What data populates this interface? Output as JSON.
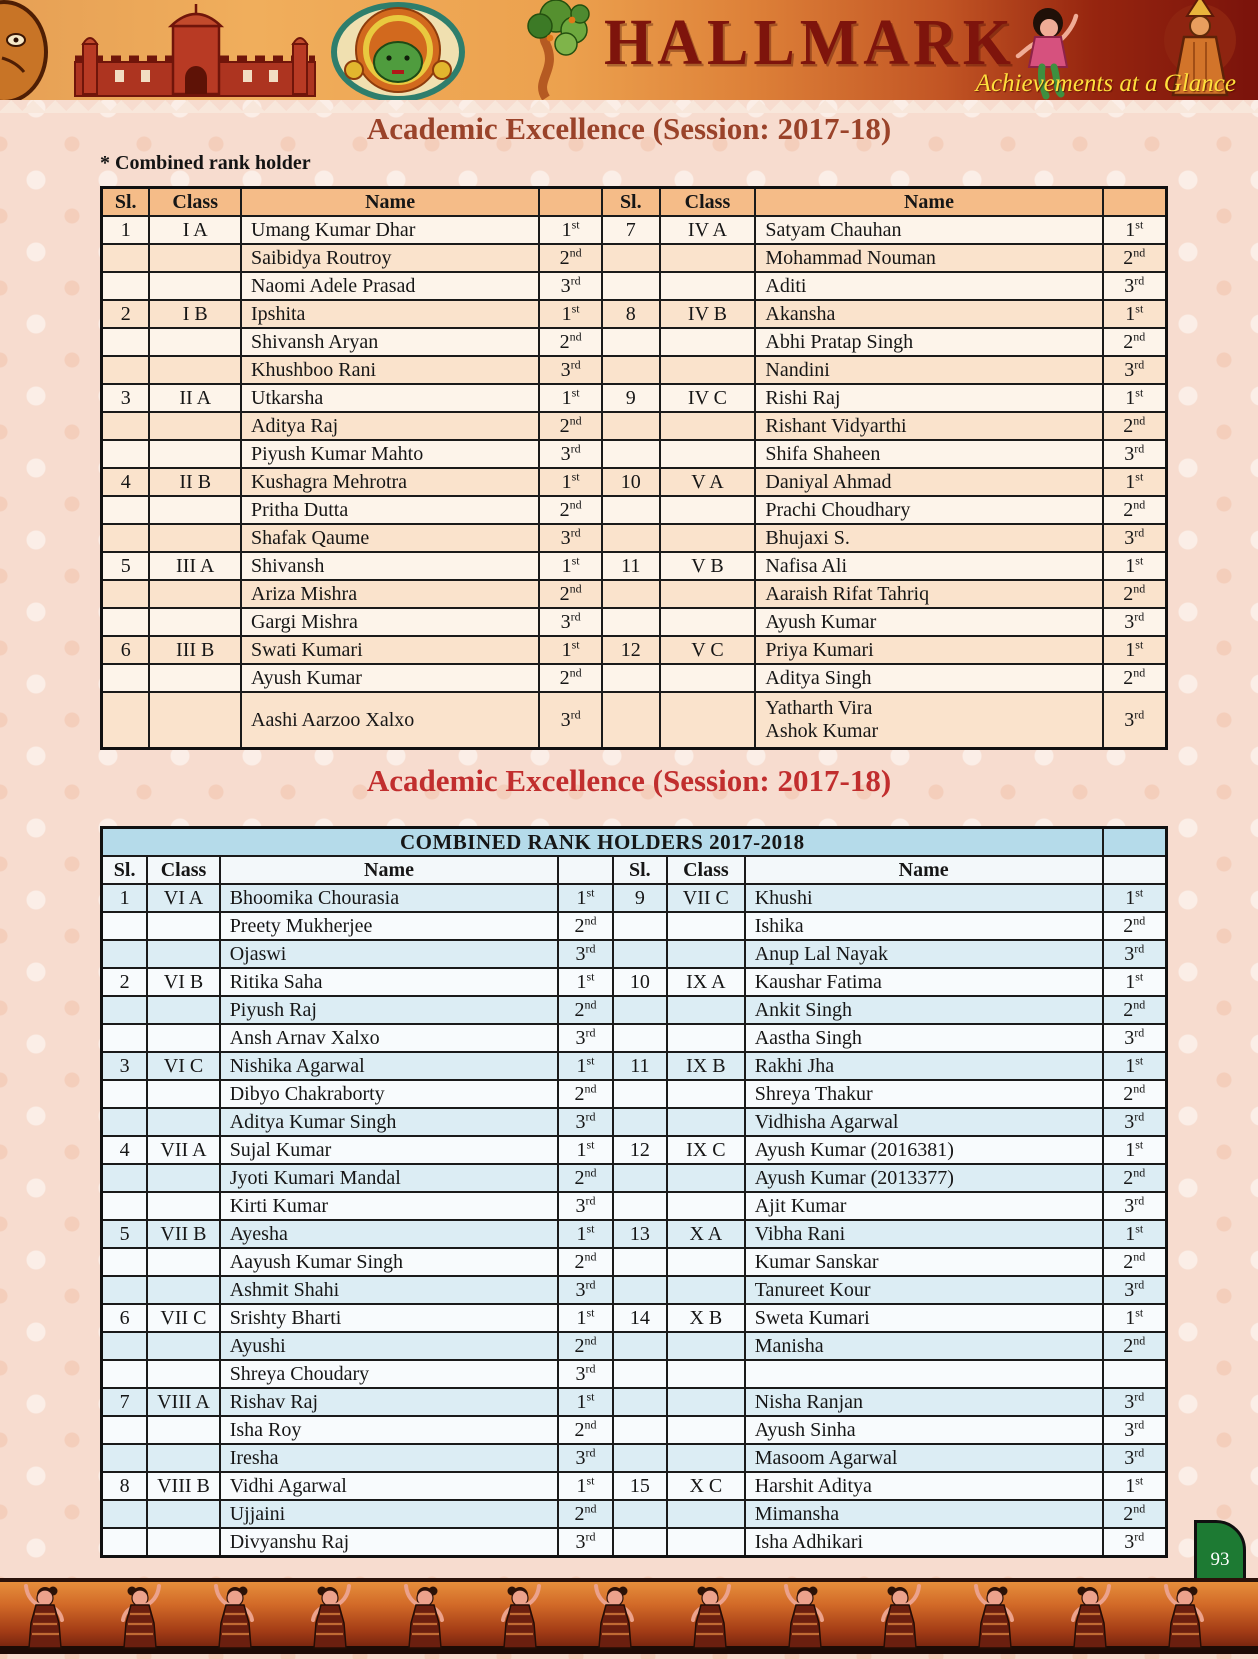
{
  "banner": {
    "title": "HALLMARK",
    "tagline": "Achievements at a Glance"
  },
  "page": {
    "number": "93"
  },
  "colors": {
    "title1": "#9A432A",
    "title2": "#C12E2E",
    "table1_header": "#F5BC88",
    "table1_row_peach": "#FAE3CC",
    "table1_row_cream": "#FDF4EA",
    "table2_band": "#B5DBEA",
    "table2_row_blue": "#DCEDF4",
    "page_tab_green": "#1D7A33",
    "tagline_yellow": "#FFE03C",
    "hallmark_red": "#7E140C"
  },
  "section1": {
    "title": "Academic Excellence (Session: 2017-18)",
    "note": "* Combined rank holder",
    "columns": [
      "Sl.",
      "Class",
      "Name",
      "",
      "Sl.",
      "Class",
      "Name",
      ""
    ],
    "rows": [
      [
        "1",
        "I A",
        "Umang Kumar Dhar",
        "1st",
        "7",
        "IV A",
        "Satyam Chauhan",
        "1st"
      ],
      [
        "",
        "",
        "Saibidya Routroy",
        "2nd",
        "",
        "",
        "Mohammad Nouman",
        "2nd"
      ],
      [
        "",
        "",
        "Naomi Adele Prasad",
        "3rd",
        "",
        "",
        "Aditi",
        "3rd"
      ],
      [
        "2",
        "I B",
        "Ipshita",
        "1st",
        "8",
        "IV B",
        "Akansha",
        "1st"
      ],
      [
        "",
        "",
        "Shivansh Aryan",
        "2nd",
        "",
        "",
        "Abhi Pratap Singh",
        "2nd"
      ],
      [
        "",
        "",
        "Khushboo Rani",
        "3rd",
        "",
        "",
        "Nandini",
        "3rd"
      ],
      [
        "3",
        "II A",
        "Utkarsha",
        "1st",
        "9",
        "IV C",
        "Rishi Raj",
        "1st"
      ],
      [
        "",
        "",
        "Aditya Raj",
        "2nd",
        "",
        "",
        "Rishant Vidyarthi",
        "2nd"
      ],
      [
        "",
        "",
        "Piyush Kumar Mahto",
        "3rd",
        "",
        "",
        "Shifa Shaheen",
        "3rd"
      ],
      [
        "4",
        "II B",
        "Kushagra Mehrotra",
        "1st",
        "10",
        "V A",
        "Daniyal Ahmad",
        "1st"
      ],
      [
        "",
        "",
        "Pritha Dutta",
        "2nd",
        "",
        "",
        "Prachi Choudhary",
        "2nd"
      ],
      [
        "",
        "",
        "Shafak Qaume",
        "3rd",
        "",
        "",
        "Bhujaxi S.",
        "3rd"
      ],
      [
        "5",
        "III A",
        "Shivansh",
        "1st",
        "11",
        "V B",
        "Nafisa Ali",
        "1st"
      ],
      [
        "",
        "",
        "Ariza Mishra",
        "2nd",
        "",
        "",
        "Aaraish Rifat Tahriq",
        "2nd"
      ],
      [
        "",
        "",
        "Gargi Mishra",
        "3rd",
        "",
        "",
        "Ayush Kumar",
        "3rd"
      ],
      [
        "6",
        "III B",
        "Swati Kumari",
        "1st",
        "12",
        "V C",
        "Priya Kumari",
        "1st"
      ],
      [
        "",
        "",
        "Ayush Kumar",
        "2nd",
        "",
        "",
        "Aditya Singh",
        "2nd"
      ],
      [
        "",
        "",
        "Aashi Aarzoo Xalxo",
        "3rd",
        "",
        "",
        "Yatharth Vira\nAshok Kumar",
        "3rd"
      ]
    ]
  },
  "section2": {
    "title": "Academic Excellence (Session: 2017-18)",
    "band": "COMBINED RANK HOLDERS 2017-2018",
    "columns": [
      "Sl.",
      "Class",
      "Name",
      "",
      "Sl.",
      "Class",
      "Name",
      ""
    ],
    "rows": [
      [
        "1",
        "VI A",
        "Bhoomika Chourasia",
        "1st",
        "9",
        "VII C",
        "Khushi",
        "1st"
      ],
      [
        "",
        "",
        "Preety Mukherjee",
        "2nd",
        "",
        "",
        "Ishika",
        "2nd"
      ],
      [
        "",
        "",
        "Ojaswi",
        "3rd",
        "",
        "",
        "Anup Lal Nayak",
        "3rd"
      ],
      [
        "2",
        "VI B",
        "Ritika Saha",
        "1st",
        "10",
        "IX A",
        "Kaushar Fatima",
        "1st"
      ],
      [
        "",
        "",
        "Piyush Raj",
        "2nd",
        "",
        "",
        "Ankit Singh",
        "2nd"
      ],
      [
        "",
        "",
        "Ansh Arnav Xalxo",
        "3rd",
        "",
        "",
        "Aastha Singh",
        "3rd"
      ],
      [
        "3",
        "VI C",
        "Nishika Agarwal",
        "1st",
        "11",
        "IX B",
        "Rakhi Jha",
        "1st"
      ],
      [
        "",
        "",
        "Dibyo Chakraborty",
        "2nd",
        "",
        "",
        "Shreya Thakur",
        "2nd"
      ],
      [
        "",
        "",
        "Aditya Kumar Singh",
        "3rd",
        "",
        "",
        "Vidhisha Agarwal",
        "3rd"
      ],
      [
        "4",
        "VII A",
        "Sujal Kumar",
        "1st",
        "12",
        "IX C",
        "Ayush Kumar (2016381)",
        "1st"
      ],
      [
        "",
        "",
        "Jyoti Kumari Mandal",
        "2nd",
        "",
        "",
        "Ayush Kumar (2013377)",
        "2nd"
      ],
      [
        "",
        "",
        "Kirti Kumar",
        "3rd",
        "",
        "",
        "Ajit Kumar",
        "3rd"
      ],
      [
        "5",
        "VII B",
        "Ayesha",
        "1st",
        "13",
        "X A",
        "Vibha Rani",
        "1st"
      ],
      [
        "",
        "",
        "Aayush Kumar Singh",
        "2nd",
        "",
        "",
        "Kumar Sanskar",
        "2nd"
      ],
      [
        "",
        "",
        "Ashmit Shahi",
        "3rd",
        "",
        "",
        "Tanureet Kour",
        "3rd"
      ],
      [
        "6",
        "VII C",
        "Srishty Bharti",
        "1st",
        "14",
        "X B",
        "Sweta Kumari",
        "1st"
      ],
      [
        "",
        "",
        "Ayushi",
        "2nd",
        "",
        "",
        "Manisha",
        "2nd"
      ],
      [
        "",
        "",
        "Shreya Choudary",
        "3rd",
        "",
        "",
        "",
        ""
      ],
      [
        "7",
        "VIII A",
        "Rishav Raj",
        "1st",
        "",
        "",
        "Nisha Ranjan",
        "3rd"
      ],
      [
        "",
        "",
        "Isha Roy",
        "2nd",
        "",
        "",
        "Ayush Sinha",
        "3rd"
      ],
      [
        "",
        "",
        "Iresha",
        "3rd",
        "",
        "",
        "Masoom Agarwal",
        "3rd"
      ],
      [
        "8",
        "VIII B",
        "Vidhi Agarwal",
        "1st",
        "15",
        "X C",
        "Harshit Aditya",
        "1st"
      ],
      [
        "",
        "",
        "Ujjaini",
        "2nd",
        "",
        "",
        "Mimansha",
        "2nd"
      ],
      [
        "",
        "",
        "Divyanshu Raj",
        "3rd",
        "",
        "",
        "Isha Adhikari",
        "3rd"
      ]
    ]
  }
}
